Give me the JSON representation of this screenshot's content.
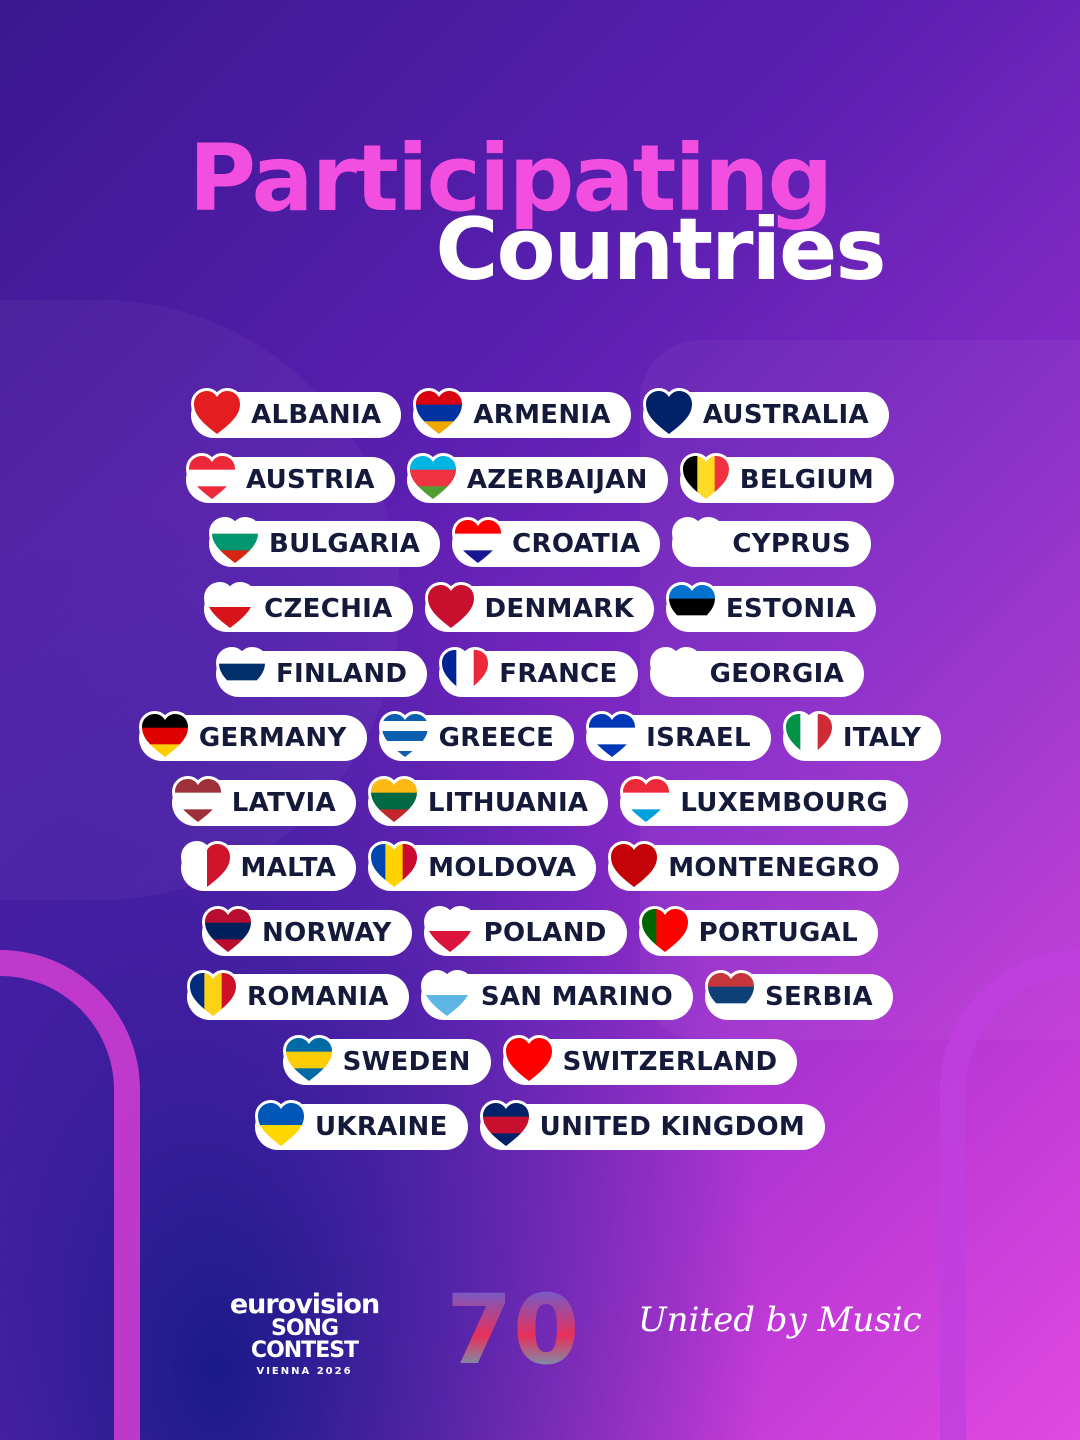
{
  "title": {
    "line1": "Participating",
    "line2": "Countries"
  },
  "colors": {
    "title_pink": "#f24ee0",
    "pill_text": "#15193a",
    "pill_bg": "#ffffff"
  },
  "rows": [
    [
      {
        "name": "ALBANIA",
        "flag": {
          "dir": "h",
          "colors": [
            "#e41e20"
          ]
        }
      },
      {
        "name": "ARMENIA",
        "flag": {
          "dir": "h",
          "colors": [
            "#d90012",
            "#0033a0",
            "#f2a800"
          ]
        }
      },
      {
        "name": "AUSTRALIA",
        "flag": {
          "dir": "h",
          "colors": [
            "#012169"
          ]
        }
      }
    ],
    [
      {
        "name": "AUSTRIA",
        "flag": {
          "dir": "h",
          "colors": [
            "#ed2939",
            "#ffffff",
            "#ed2939"
          ]
        }
      },
      {
        "name": "AZERBAIJAN",
        "flag": {
          "dir": "h",
          "colors": [
            "#00b5e2",
            "#ef3340",
            "#509e2f"
          ]
        }
      },
      {
        "name": "BELGIUM",
        "flag": {
          "dir": "v",
          "colors": [
            "#000000",
            "#fdda24",
            "#ef3340"
          ]
        }
      }
    ],
    [
      {
        "name": "BULGARIA",
        "flag": {
          "dir": "h",
          "colors": [
            "#ffffff",
            "#00966e",
            "#d62612"
          ]
        }
      },
      {
        "name": "CROATIA",
        "flag": {
          "dir": "h",
          "colors": [
            "#ff0000",
            "#ffffff",
            "#171796"
          ]
        }
      },
      {
        "name": "CYPRUS",
        "flag": {
          "dir": "h",
          "colors": [
            "#ffffff"
          ]
        }
      }
    ],
    [
      {
        "name": "CZECHIA",
        "flag": {
          "dir": "h",
          "colors": [
            "#ffffff",
            "#d7141a"
          ]
        }
      },
      {
        "name": "DENMARK",
        "flag": {
          "dir": "h",
          "colors": [
            "#c8102e"
          ]
        }
      },
      {
        "name": "ESTONIA",
        "flag": {
          "dir": "h",
          "colors": [
            "#0072ce",
            "#000000",
            "#ffffff"
          ]
        }
      }
    ],
    [
      {
        "name": "FINLAND",
        "flag": {
          "dir": "h",
          "colors": [
            "#ffffff",
            "#002f6c",
            "#ffffff"
          ]
        }
      },
      {
        "name": "FRANCE",
        "flag": {
          "dir": "v",
          "colors": [
            "#002395",
            "#ffffff",
            "#ed2939"
          ]
        }
      },
      {
        "name": "GEORGIA",
        "flag": {
          "dir": "h",
          "colors": [
            "#ffffff"
          ]
        }
      }
    ],
    [
      {
        "name": "GERMANY",
        "flag": {
          "dir": "h",
          "colors": [
            "#000000",
            "#dd0000",
            "#ffce00"
          ]
        }
      },
      {
        "name": "GREECE",
        "flag": {
          "dir": "h",
          "colors": [
            "#0d5eaf",
            "#ffffff",
            "#0d5eaf",
            "#ffffff",
            "#0d5eaf"
          ]
        }
      },
      {
        "name": "ISRAEL",
        "flag": {
          "dir": "h",
          "colors": [
            "#0038b8",
            "#ffffff",
            "#0038b8"
          ]
        }
      },
      {
        "name": "ITALY",
        "flag": {
          "dir": "v",
          "colors": [
            "#009246",
            "#ffffff",
            "#ce2b37"
          ]
        }
      }
    ],
    [
      {
        "name": "LATVIA",
        "flag": {
          "dir": "h",
          "colors": [
            "#9e3039",
            "#ffffff",
            "#9e3039"
          ]
        }
      },
      {
        "name": "LITHUANIA",
        "flag": {
          "dir": "h",
          "colors": [
            "#fdb913",
            "#006a44",
            "#c1272d"
          ]
        }
      },
      {
        "name": "LUXEMBOURG",
        "flag": {
          "dir": "h",
          "colors": [
            "#ed2939",
            "#ffffff",
            "#00a1de"
          ]
        }
      }
    ],
    [
      {
        "name": "MALTA",
        "flag": {
          "dir": "v",
          "colors": [
            "#ffffff",
            "#cf142b"
          ]
        }
      },
      {
        "name": "MOLDOVA",
        "flag": {
          "dir": "v",
          "colors": [
            "#0046ae",
            "#ffd200",
            "#cc092f"
          ]
        }
      },
      {
        "name": "MONTENEGRO",
        "flag": {
          "dir": "h",
          "colors": [
            "#c40308"
          ]
        }
      }
    ],
    [
      {
        "name": "NORWAY",
        "flag": {
          "dir": "h",
          "colors": [
            "#ba0c2f",
            "#00205b",
            "#ba0c2f"
          ]
        }
      },
      {
        "name": "POLAND",
        "flag": {
          "dir": "h",
          "colors": [
            "#ffffff",
            "#dc143c"
          ]
        }
      },
      {
        "name": "PORTUGAL",
        "flag": {
          "dir": "v",
          "colors": [
            "#006600",
            "#ff0000",
            "#ff0000"
          ]
        }
      }
    ],
    [
      {
        "name": "ROMANIA",
        "flag": {
          "dir": "v",
          "colors": [
            "#002b7f",
            "#fcd116",
            "#ce1126"
          ]
        }
      },
      {
        "name": "SAN MARINO",
        "flag": {
          "dir": "h",
          "colors": [
            "#ffffff",
            "#5eb6e4"
          ]
        }
      },
      {
        "name": "SERBIA",
        "flag": {
          "dir": "h",
          "colors": [
            "#c6363c",
            "#0c4076",
            "#ffffff"
          ]
        }
      }
    ],
    [
      {
        "name": "SWEDEN",
        "flag": {
          "dir": "h",
          "colors": [
            "#006aa7",
            "#fecc02",
            "#006aa7"
          ]
        }
      },
      {
        "name": "SWITZERLAND",
        "flag": {
          "dir": "h",
          "colors": [
            "#ff0000"
          ]
        }
      }
    ],
    [
      {
        "name": "UKRAINE",
        "flag": {
          "dir": "h",
          "colors": [
            "#0057b7",
            "#ffd700"
          ]
        }
      },
      {
        "name": "UNITED KINGDOM",
        "flag": {
          "dir": "h",
          "colors": [
            "#012169",
            "#c8102e",
            "#012169"
          ]
        }
      }
    ]
  ],
  "footer": {
    "esc_line1": "eurovision",
    "esc_line2": "SONG CONTEST",
    "esc_line3": "VIENNA 2026",
    "anniversary": "70",
    "slogan": "United by Music"
  }
}
